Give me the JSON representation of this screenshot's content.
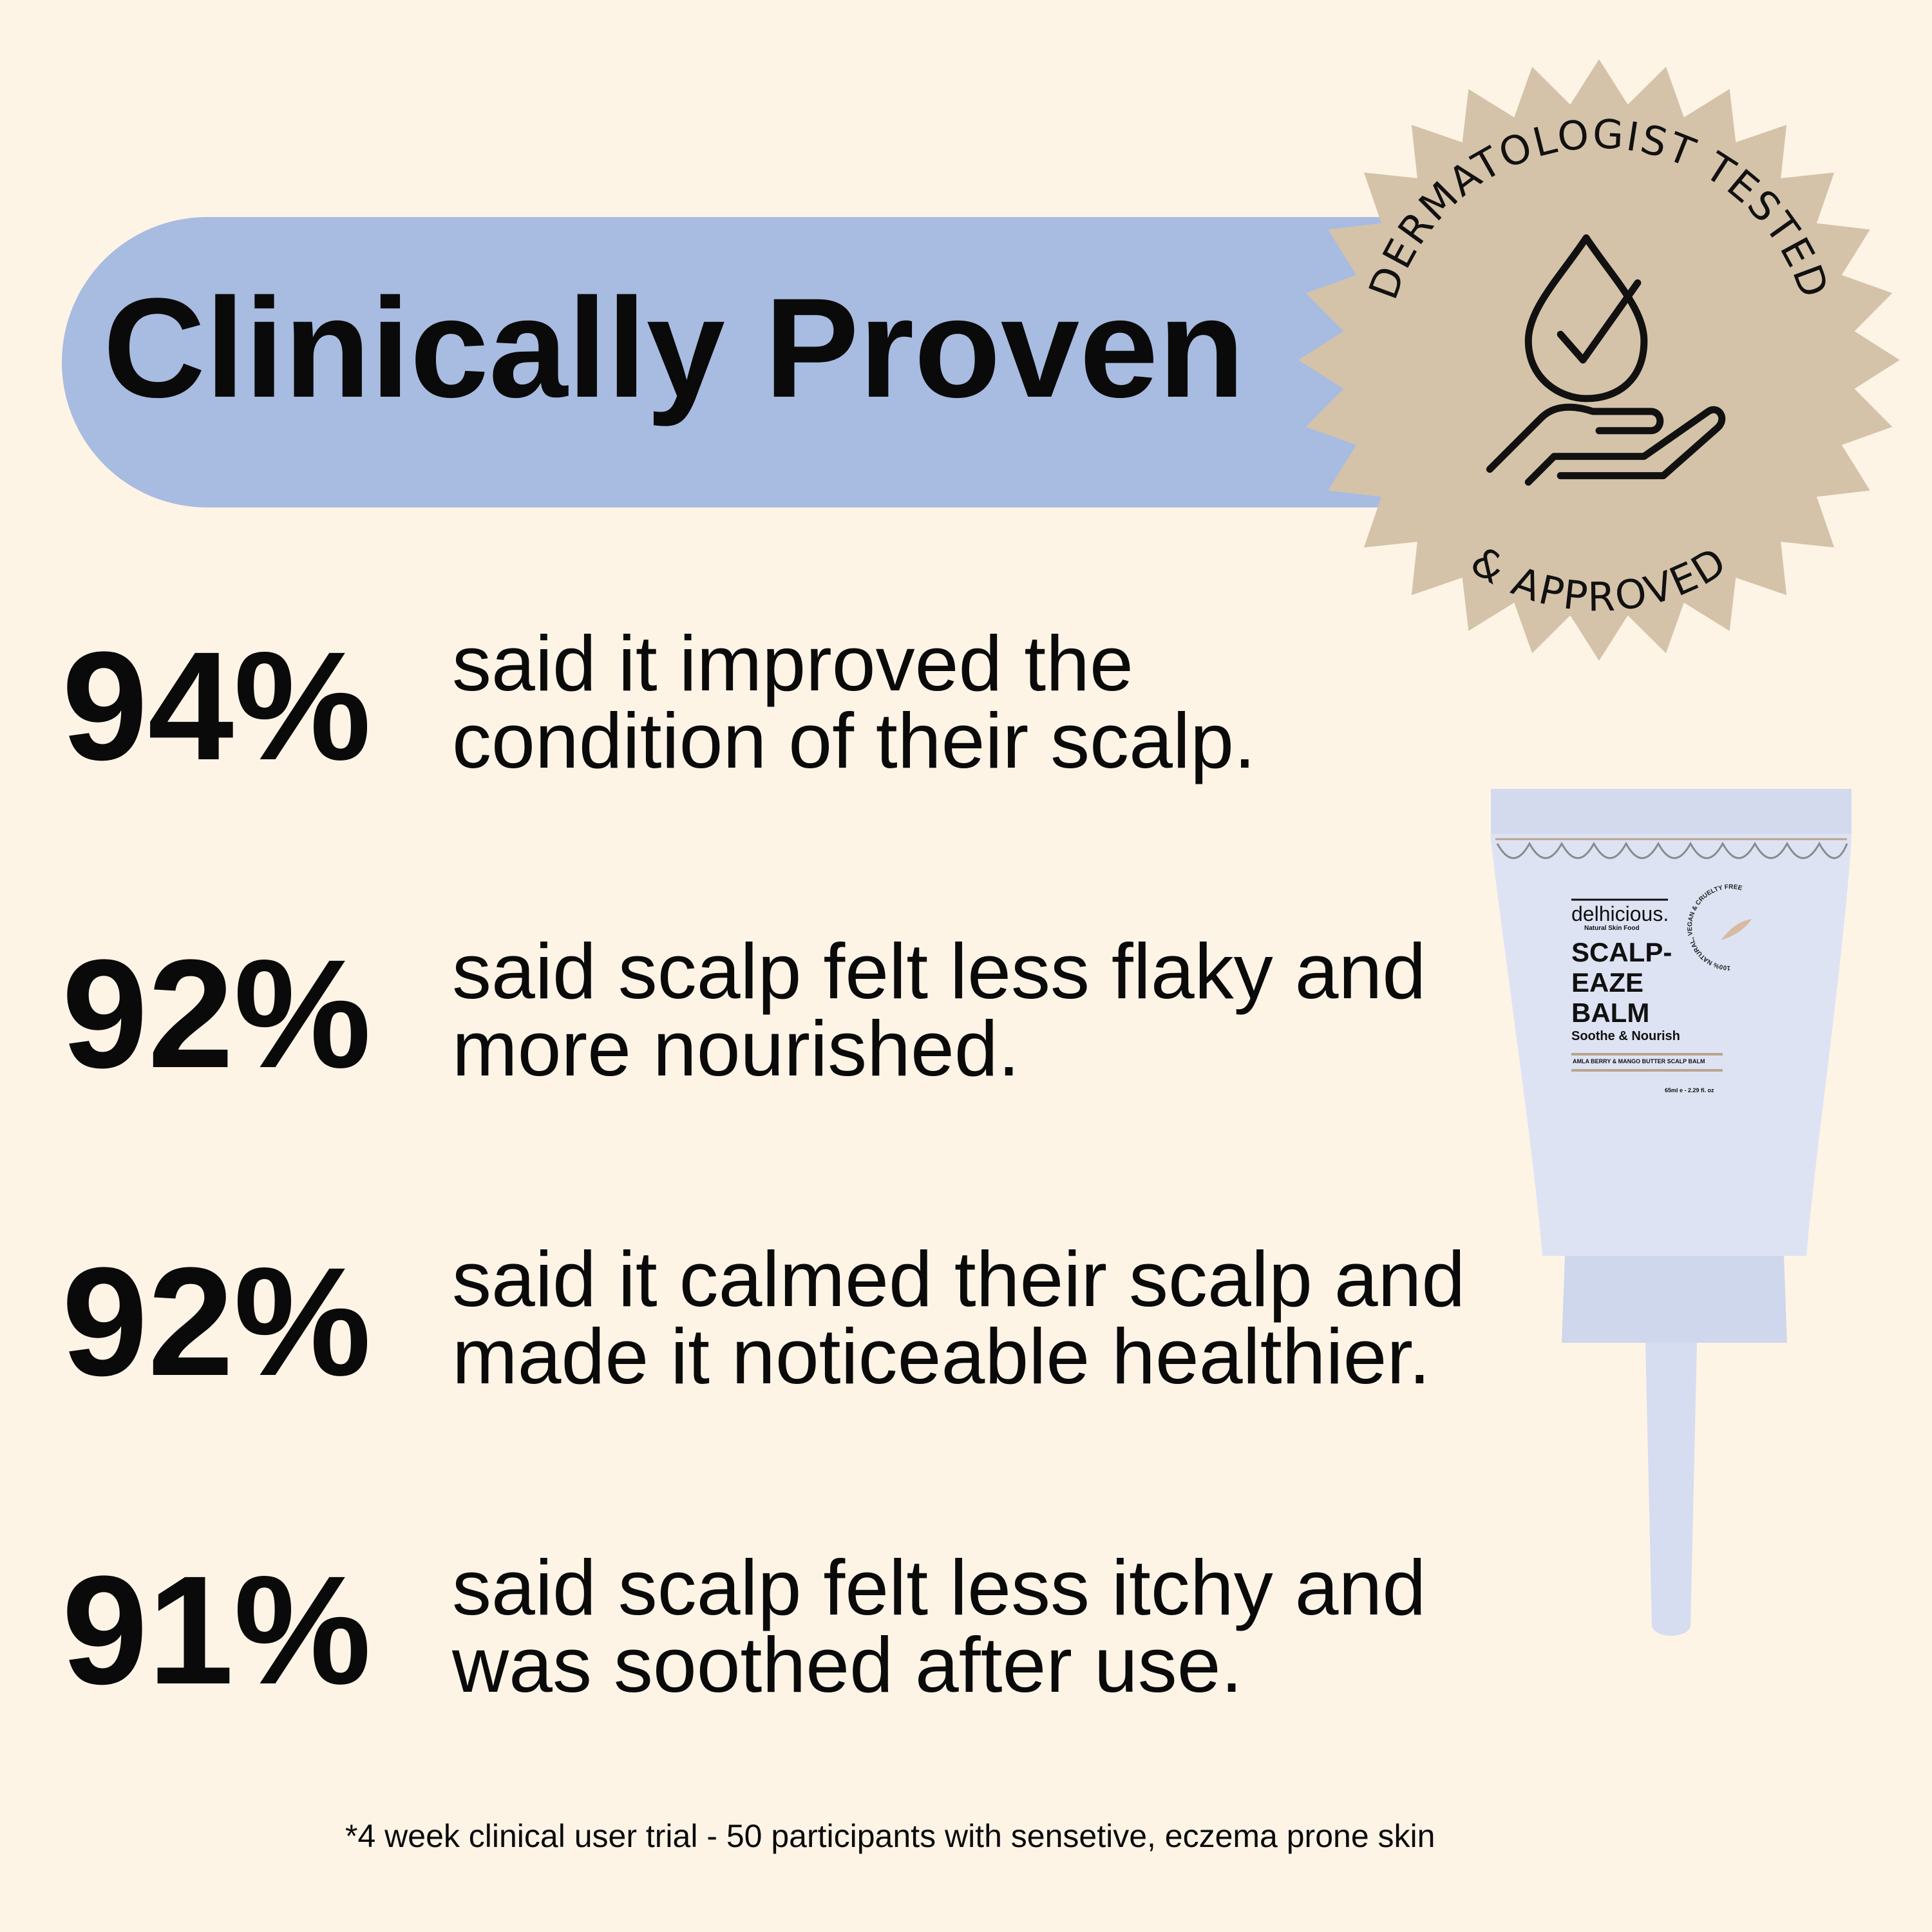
{
  "header": {
    "title": "Clinically Proven"
  },
  "badge": {
    "top_text": "DERMATOLOGIST TESTED",
    "bottom_text": "& APPROVED",
    "icon": "drop-check-hand-icon",
    "color": "#d4c3a9"
  },
  "stats": [
    {
      "percent": "94%",
      "line1": "said it improved the",
      "line2": "condition of their scalp."
    },
    {
      "percent": "92%",
      "line1": "said scalp felt less flaky and",
      "line2": "more nourished."
    },
    {
      "percent": "92%",
      "line1": "said it calmed their scalp and",
      "line2": "made it noticeable healthier."
    },
    {
      "percent": "91%",
      "line1": "said scalp felt less itchy and",
      "line2": "was soothed after use."
    }
  ],
  "product": {
    "brand": "delhicious.",
    "tagline": "Natural Skin Food",
    "name1": "SCALP-",
    "name2": "EAZE",
    "name3": "BALM",
    "subtitle": "Soothe & Nourish",
    "ingredients": "AMLA BERRY & MANGO BUTTER SCALP BALM",
    "size": "65ml e - 2.29 fl. oz",
    "seal": "100% NATURAL, VEGAN & CRUELTY FREE"
  },
  "footer": {
    "note": "*4 week clinical user trial - 50 participants with sensetive, eczema prone skin"
  },
  "colors": {
    "background": "#fdf4e6",
    "pill": "#a8bbe1",
    "badge": "#d4c3a9",
    "tube": "#dde3f3"
  }
}
